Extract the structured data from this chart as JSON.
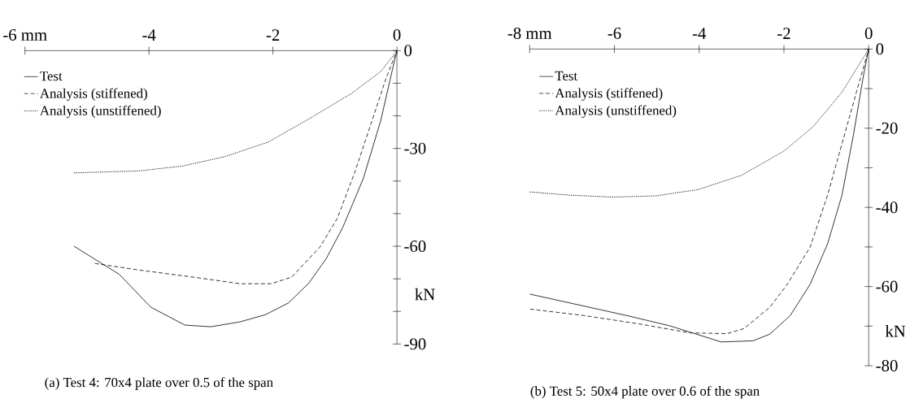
{
  "chart_data": [
    {
      "type": "line",
      "title": "(a) Test 4: 70x4 plate over 0.5 of the span",
      "ylabel": "kN",
      "xlim": [
        -6,
        0
      ],
      "ylim": [
        -90,
        0
      ],
      "xticks": [
        {
          "value": -6,
          "label": "-6 mm"
        },
        -4,
        -2,
        0
      ],
      "yticks": [
        0,
        {
          "value": -10,
          "label": null
        },
        {
          "value": -20,
          "label": null
        },
        -30,
        {
          "value": -40,
          "label": null
        },
        {
          "value": -50,
          "label": null
        },
        -60,
        {
          "value": -70,
          "label": null
        },
        {
          "value": -80,
          "label": null
        },
        -90
      ],
      "legend": "top left",
      "marker": "none",
      "series": [
        {
          "name": "Test",
          "color": "#000000",
          "line_style": "solid",
          "x": [
            -5.21,
            -4.48,
            -3.97,
            -3.42,
            -3.0,
            -2.53,
            -2.12,
            -1.75,
            -1.42,
            -1.14,
            -0.87,
            -0.54,
            -0.26,
            -0.08,
            0
          ],
          "values": [
            -60.0,
            -68.6,
            -78.7,
            -84.2,
            -84.7,
            -83.2,
            -81.0,
            -77.4,
            -71.3,
            -63.8,
            -54.1,
            -39.1,
            -21.4,
            -6.4,
            0
          ]
        },
        {
          "name": "Analysis (stiffened)",
          "color": "#000000",
          "line_style": "dashed",
          "x": [
            -4.87,
            -4.16,
            -3.28,
            -2.53,
            -2.03,
            -1.7,
            -1.24,
            -0.96,
            -0.68,
            -0.4,
            -0.17,
            0
          ],
          "values": [
            -65.3,
            -67.3,
            -69.5,
            -71.5,
            -71.5,
            -69.5,
            -60.2,
            -51.4,
            -37.3,
            -21.4,
            -8.2,
            0
          ]
        },
        {
          "name": "Analysis (unstiffened)",
          "color": "#000000",
          "line_style": "dotted",
          "x": [
            -5.21,
            -4.16,
            -3.46,
            -2.77,
            -2.07,
            -1.38,
            -0.73,
            -0.26,
            0
          ],
          "values": [
            -37.5,
            -36.9,
            -35.4,
            -32.5,
            -28.0,
            -20.5,
            -13.1,
            -6.4,
            0
          ]
        }
      ]
    },
    {
      "type": "line",
      "title": "(b) Test 5: 50x4 plate over 0.6 of the span",
      "ylabel": "kN",
      "xlim": [
        -8,
        0
      ],
      "ylim": [
        -80,
        0
      ],
      "xticks": [
        {
          "value": -8,
          "label": "-8 mm"
        },
        -6,
        -4,
        -2,
        0
      ],
      "yticks": [
        0,
        {
          "value": -10,
          "label": null
        },
        -20,
        {
          "value": -30,
          "label": null
        },
        -40,
        {
          "value": -50,
          "label": null
        },
        -60,
        {
          "value": -70,
          "label": null
        },
        -80
      ],
      "legend": "top left",
      "marker": "none",
      "series": [
        {
          "name": "Test",
          "color": "#000000",
          "line_style": "solid",
          "x": [
            -8.0,
            -7.07,
            -5.72,
            -4.7,
            -4.16,
            -3.48,
            -2.73,
            -2.33,
            -1.85,
            -1.38,
            -0.97,
            -0.63,
            -0.36,
            -0.12,
            0
          ],
          "values": [
            -61.9,
            -64.1,
            -67.3,
            -69.9,
            -71.7,
            -74.0,
            -73.7,
            -72.0,
            -67.3,
            -59.4,
            -49.2,
            -36.9,
            -21.7,
            -6.5,
            0
          ]
        },
        {
          "name": "Analysis (stiffened)",
          "color": "#000000",
          "line_style": "dashed",
          "x": [
            -7.99,
            -6.73,
            -5.38,
            -4.22,
            -3.34,
            -2.94,
            -2.33,
            -1.92,
            -1.38,
            -0.97,
            -0.63,
            -0.29,
            0
          ],
          "values": [
            -65.7,
            -67.3,
            -69.5,
            -71.7,
            -71.9,
            -70.6,
            -65.2,
            -59.4,
            -50.0,
            -36.9,
            -23.9,
            -10.9,
            0
          ]
        },
        {
          "name": "Analysis (unstiffened)",
          "color": "#000000",
          "line_style": "dotted",
          "x": [
            -8.0,
            -7.07,
            -6.05,
            -5.03,
            -4.02,
            -3.0,
            -1.99,
            -1.31,
            -0.63,
            0
          ],
          "values": [
            -36.1,
            -36.9,
            -37.4,
            -37.1,
            -35.5,
            -31.9,
            -25.7,
            -19.6,
            -10.9,
            0
          ]
        }
      ]
    }
  ]
}
